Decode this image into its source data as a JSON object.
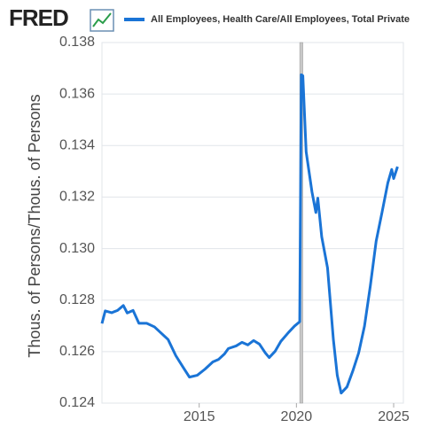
{
  "logo": "FRED",
  "chart_data": {
    "type": "line",
    "y_label": "Thous. of Persons/Thous. of Persons",
    "x": [
      2010.0,
      2010.17,
      2010.5,
      2010.8,
      2011.1,
      2011.3,
      2011.6,
      2011.9,
      2012.3,
      2012.7,
      2013.0,
      2013.4,
      2013.8,
      2014.2,
      2014.5,
      2014.9,
      2015.3,
      2015.7,
      2016.0,
      2016.3,
      2016.5,
      2016.9,
      2017.2,
      2017.5,
      2017.8,
      2018.1,
      2018.4,
      2018.6,
      2018.9,
      2019.2,
      2019.6,
      2019.9,
      2020.17,
      2020.25,
      2020.33,
      2020.5,
      2020.8,
      2021.0,
      2021.1,
      2021.3,
      2021.6,
      2021.9,
      2022.1,
      2022.3,
      2022.6,
      2022.9,
      2023.2,
      2023.5,
      2023.8,
      2024.1,
      2024.4,
      2024.7,
      2024.9,
      2025.0,
      2025.2
    ],
    "series": [
      {
        "name": "All Employees, Health Care/All Employees, Total Private",
        "color": "#1a74d6",
        "values": [
          0.12709,
          0.12758,
          0.12751,
          0.1276,
          0.12779,
          0.1275,
          0.1276,
          0.1271,
          0.1271,
          0.12696,
          0.12675,
          0.12647,
          0.12584,
          0.12536,
          0.12501,
          0.12508,
          0.12532,
          0.1256,
          0.1257,
          0.12591,
          0.12612,
          0.12622,
          0.12636,
          0.12626,
          0.12643,
          0.12629,
          0.12595,
          0.12577,
          0.12601,
          0.1264,
          0.12675,
          0.12699,
          0.12716,
          0.13675,
          0.13671,
          0.13376,
          0.1322,
          0.1314,
          0.13196,
          0.13046,
          0.12925,
          0.12647,
          0.12508,
          0.12439,
          0.12463,
          0.12525,
          0.12595,
          0.12699,
          0.12855,
          0.13029,
          0.1314,
          0.13255,
          0.13307,
          0.13272,
          0.13318
        ]
      }
    ],
    "shaded_periods": [
      [
        2020.17,
        2020.33
      ]
    ],
    "xlim": [
      2010,
      2025.5
    ],
    "xticks": [
      2015,
      2020,
      2025
    ],
    "ylim": [
      0.124,
      0.138
    ],
    "yticks": [
      0.124,
      0.126,
      0.128,
      {
        "value": 0.13,
        "label": "0.130"
      },
      0.132,
      0.134,
      0.136,
      0.138
    ],
    "grid": true
  }
}
